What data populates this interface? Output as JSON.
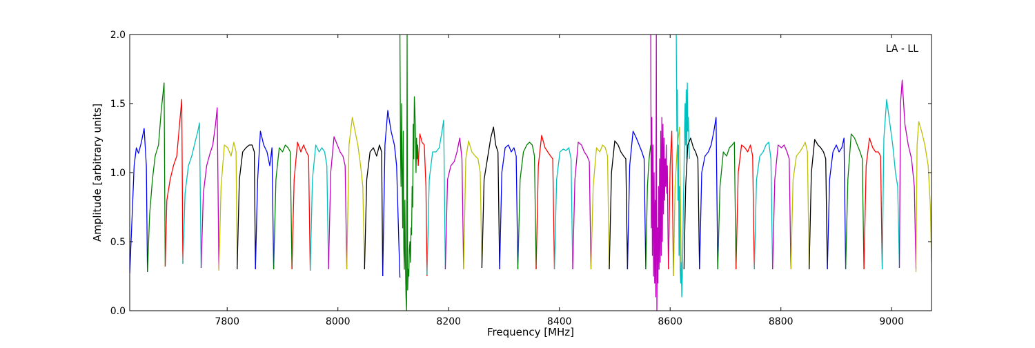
{
  "chart_data": {
    "type": "line",
    "annotation": "LA - LL",
    "xlabel": "Frequency [MHz]",
    "ylabel": "Amplitude [arbitrary units]",
    "xlim": [
      7624,
      9072
    ],
    "ylim": [
      0.0,
      2.0
    ],
    "x_ticks": [
      7800,
      8000,
      8200,
      8400,
      8600,
      8800,
      9000
    ],
    "y_ticks": [
      0.0,
      0.5,
      1.0,
      1.5,
      2.0
    ],
    "x_tick_labels": [
      "7800",
      "8000",
      "8200",
      "8400",
      "8600",
      "8800",
      "9000"
    ],
    "y_tick_labels": [
      "0.0",
      "0.5",
      "1.0",
      "1.5",
      "2.0"
    ],
    "grid": false,
    "legend": "none",
    "color_cycle": [
      "#0000ff",
      "#008000",
      "#ff0000",
      "#00bfbf",
      "#bf00bf",
      "#bfbf00",
      "#000000"
    ],
    "series": [
      {
        "color": "#0000ff",
        "x": [
          7624,
          7628,
          7632,
          7636,
          7640,
          7645,
          7650,
          7654,
          7656
        ],
        "y": [
          0.27,
          0.65,
          1.05,
          1.18,
          1.14,
          1.22,
          1.32,
          1.05,
          0.28
        ]
      },
      {
        "color": "#008000",
        "x": [
          7656,
          7660,
          7665,
          7670,
          7676,
          7681,
          7686,
          7688
        ],
        "y": [
          0.28,
          0.7,
          0.95,
          1.12,
          1.2,
          1.45,
          1.65,
          0.32
        ]
      },
      {
        "color": "#ff0000",
        "x": [
          7688,
          7691,
          7697,
          7703,
          7709,
          7714,
          7718,
          7720
        ],
        "y": [
          0.32,
          0.8,
          0.95,
          1.05,
          1.12,
          1.35,
          1.53,
          0.34
        ]
      },
      {
        "color": "#00bfbf",
        "x": [
          7720,
          7724,
          7730,
          7736,
          7742,
          7747,
          7750,
          7753
        ],
        "y": [
          0.34,
          0.85,
          1.05,
          1.12,
          1.22,
          1.3,
          1.36,
          0.31
        ]
      },
      {
        "color": "#bf00bf",
        "x": [
          7753,
          7757,
          7763,
          7769,
          7774,
          7779,
          7782,
          7785
        ],
        "y": [
          0.31,
          0.85,
          1.05,
          1.14,
          1.2,
          1.35,
          1.47,
          0.3
        ]
      },
      {
        "color": "#bfbf00",
        "x": [
          7785,
          7789,
          7795,
          7801,
          7807,
          7812,
          7816,
          7818
        ],
        "y": [
          0.29,
          0.9,
          1.2,
          1.18,
          1.12,
          1.22,
          1.15,
          0.33
        ]
      },
      {
        "color": "#000000",
        "x": [
          7818,
          7822,
          7828,
          7834,
          7840,
          7845,
          7849,
          7851
        ],
        "y": [
          0.3,
          0.95,
          1.15,
          1.18,
          1.2,
          1.2,
          1.15,
          0.3
        ]
      },
      {
        "color": "#0000ff",
        "x": [
          7851,
          7855,
          7860,
          7866,
          7872,
          7877,
          7881,
          7884
        ],
        "y": [
          0.3,
          0.95,
          1.3,
          1.2,
          1.15,
          1.05,
          1.18,
          0.3
        ]
      },
      {
        "color": "#008000",
        "x": [
          7884,
          7888,
          7894,
          7900,
          7905,
          7910,
          7914,
          7917
        ],
        "y": [
          0.3,
          0.95,
          1.18,
          1.15,
          1.2,
          1.18,
          1.15,
          0.3
        ]
      },
      {
        "color": "#ff0000",
        "x": [
          7917,
          7921,
          7927,
          7933,
          7938,
          7943,
          7947,
          7950
        ],
        "y": [
          0.3,
          0.95,
          1.22,
          1.15,
          1.2,
          1.15,
          1.12,
          0.29
        ]
      },
      {
        "color": "#00bfbf",
        "x": [
          7950,
          7954,
          7960,
          7966,
          7971,
          7976,
          7980,
          7983
        ],
        "y": [
          0.29,
          0.95,
          1.2,
          1.15,
          1.18,
          1.15,
          1.05,
          0.3
        ]
      },
      {
        "color": "#bf00bf",
        "x": [
          7983,
          7987,
          7993,
          7999,
          8004,
          8009,
          8013,
          8016
        ],
        "y": [
          0.3,
          1.0,
          1.26,
          1.2,
          1.15,
          1.12,
          1.05,
          0.3
        ]
      },
      {
        "color": "#bfbf00",
        "x": [
          8016,
          8020,
          8026,
          8031,
          8036,
          8041,
          8045,
          8048
        ],
        "y": [
          0.3,
          1.2,
          1.4,
          1.3,
          1.2,
          1.05,
          0.9,
          0.3
        ]
      },
      {
        "color": "#000000",
        "x": [
          8048,
          8052,
          8058,
          8064,
          8070,
          8075,
          8079,
          8081
        ],
        "y": [
          0.3,
          0.95,
          1.15,
          1.18,
          1.12,
          1.2,
          1.15,
          0.25
        ]
      },
      {
        "color": "#0000ff",
        "x": [
          8081,
          8085,
          8090,
          8096,
          8102,
          8106,
          8110,
          8112
        ],
        "y": [
          0.25,
          1.2,
          1.45,
          1.3,
          1.2,
          1.05,
          0.5,
          0.24
        ]
      },
      {
        "color": "#008000",
        "x": [
          8112,
          8113,
          8114,
          8115,
          8116,
          8117,
          8118,
          8119,
          8120,
          8121,
          8122,
          8123,
          8124,
          8125,
          8126,
          8127,
          8128,
          8129,
          8130,
          8131,
          8132,
          8133,
          8134,
          8135,
          8136,
          8137,
          8138,
          8139,
          8140,
          8141,
          8142,
          8143,
          8144,
          8145
        ],
        "y": [
          2.0,
          1.2,
          0.9,
          1.5,
          1.0,
          0.6,
          1.3,
          0.45,
          0.3,
          0.8,
          0.35,
          0.1,
          0.0,
          2.0,
          0.15,
          0.3,
          0.25,
          0.45,
          0.5,
          0.35,
          0.6,
          0.55,
          0.9,
          0.75,
          1.35,
          1.1,
          1.55,
          1.45,
          1.3,
          1.0,
          1.25,
          1.1,
          1.2,
          1.05
        ]
      },
      {
        "color": "#ff0000",
        "x": [
          8145,
          8148,
          8152,
          8156,
          8159,
          8161
        ],
        "y": [
          1.05,
          1.28,
          1.22,
          1.2,
          0.9,
          0.25
        ]
      },
      {
        "color": "#00bfbf",
        "x": [
          8161,
          8165,
          8171,
          8177,
          8183,
          8188,
          8191,
          8194
        ],
        "y": [
          0.26,
          0.95,
          1.15,
          1.15,
          1.18,
          1.3,
          1.38,
          0.3
        ]
      },
      {
        "color": "#bf00bf",
        "x": [
          8194,
          8198,
          8204,
          8210,
          8215,
          8220,
          8224,
          8227
        ],
        "y": [
          0.3,
          0.95,
          1.05,
          1.08,
          1.15,
          1.25,
          1.1,
          0.3
        ]
      },
      {
        "color": "#bfbf00",
        "x": [
          8227,
          8231,
          8236,
          8242,
          8248,
          8253,
          8257,
          8260
        ],
        "y": [
          0.3,
          1.1,
          1.23,
          1.15,
          1.12,
          1.1,
          1.0,
          0.31
        ]
      },
      {
        "color": "#000000",
        "x": [
          8260,
          8264,
          8270,
          8276,
          8281,
          8285,
          8289,
          8292
        ],
        "y": [
          0.31,
          0.95,
          1.1,
          1.25,
          1.33,
          1.2,
          1.15,
          0.3
        ]
      },
      {
        "color": "#0000ff",
        "x": [
          8292,
          8296,
          8302,
          8308,
          8313,
          8318,
          8322,
          8325
        ],
        "y": [
          0.3,
          1.0,
          1.18,
          1.2,
          1.15,
          1.18,
          1.12,
          0.3
        ]
      },
      {
        "color": "#008000",
        "x": [
          8325,
          8329,
          8335,
          8341,
          8346,
          8351,
          8355,
          8358
        ],
        "y": [
          0.3,
          0.95,
          1.15,
          1.2,
          1.22,
          1.2,
          1.12,
          0.3
        ]
      },
      {
        "color": "#ff0000",
        "x": [
          8358,
          8362,
          8368,
          8374,
          8379,
          8384,
          8388,
          8391
        ],
        "y": [
          0.3,
          1.05,
          1.27,
          1.18,
          1.15,
          1.12,
          1.1,
          0.3
        ]
      },
      {
        "color": "#00bfbf",
        "x": [
          8391,
          8395,
          8401,
          8407,
          8412,
          8417,
          8421,
          8424
        ],
        "y": [
          0.3,
          0.95,
          1.15,
          1.17,
          1.16,
          1.18,
          1.1,
          0.3
        ]
      },
      {
        "color": "#bf00bf",
        "x": [
          8424,
          8428,
          8434,
          8440,
          8445,
          8450,
          8454,
          8457
        ],
        "y": [
          0.3,
          0.95,
          1.22,
          1.2,
          1.15,
          1.12,
          1.08,
          0.3
        ]
      },
      {
        "color": "#bfbf00",
        "x": [
          8457,
          8461,
          8467,
          8473,
          8478,
          8483,
          8487,
          8490
        ],
        "y": [
          0.3,
          0.9,
          1.18,
          1.15,
          1.2,
          1.18,
          1.12,
          0.3
        ]
      },
      {
        "color": "#000000",
        "x": [
          8490,
          8494,
          8500,
          8506,
          8511,
          8516,
          8520,
          8523
        ],
        "y": [
          0.3,
          1.0,
          1.23,
          1.2,
          1.15,
          1.12,
          1.1,
          0.3
        ]
      },
      {
        "color": "#0000ff",
        "x": [
          8523,
          8527,
          8533,
          8539,
          8544,
          8549,
          8553,
          8556
        ],
        "y": [
          0.3,
          1.05,
          1.3,
          1.25,
          1.2,
          1.15,
          1.1,
          0.3
        ]
      },
      {
        "color": "#008000",
        "x": [
          8556,
          8559,
          8562,
          8565
        ],
        "y": [
          0.3,
          0.9,
          1.1,
          1.2
        ]
      },
      {
        "color": "#bf00bf",
        "x": [
          8565,
          8566,
          8567,
          8568,
          8569,
          8570,
          8571,
          8572,
          8573,
          8574,
          8575,
          8576,
          8577,
          8578,
          8579,
          8580,
          8581,
          8582,
          8583,
          8584,
          8585,
          8586,
          8587,
          8588,
          8589,
          8590,
          8591,
          8592,
          8593,
          8594,
          8595,
          8596,
          8597
        ],
        "y": [
          2.0,
          0.6,
          1.4,
          0.4,
          1.2,
          0.25,
          1.0,
          0.2,
          0.8,
          0.1,
          2.0,
          0.0,
          0.6,
          0.2,
          0.9,
          0.3,
          1.1,
          0.35,
          1.3,
          0.4,
          1.4,
          0.5,
          1.35,
          0.7,
          1.25,
          0.8,
          1.1,
          0.9,
          1.2,
          0.85,
          1.05,
          0.6,
          0.3
        ]
      },
      {
        "color": "#ff0000",
        "x": [
          8597,
          8600,
          8603,
          8606
        ],
        "y": [
          0.3,
          1.05,
          1.3,
          0.25
        ]
      },
      {
        "color": "#bfbf00",
        "x": [
          8606,
          8609,
          8613,
          8617,
          8620
        ],
        "y": [
          0.25,
          0.9,
          1.2,
          1.33,
          0.3
        ]
      },
      {
        "color": "#00bfbf",
        "x": [
          8611,
          8612,
          8613,
          8614,
          8615,
          8616,
          8617,
          8618,
          8619,
          8620,
          8621,
          8622,
          8623,
          8624,
          8625,
          8626,
          8627,
          8628,
          8629,
          8630,
          8631,
          8632,
          8633,
          8634,
          8635
        ],
        "y": [
          2.0,
          1.3,
          1.6,
          0.8,
          1.2,
          0.4,
          0.9,
          0.3,
          0.2,
          0.35,
          0.1,
          0.25,
          0.5,
          0.8,
          1.0,
          1.3,
          1.5,
          1.2,
          1.6,
          1.1,
          1.65,
          1.3,
          1.4,
          1.2,
          1.1
        ]
      },
      {
        "color": "#000000",
        "x": [
          8625,
          8628,
          8632,
          8637,
          8642,
          8646,
          8650,
          8653
        ],
        "y": [
          0.3,
          0.9,
          1.2,
          1.25,
          1.18,
          1.15,
          1.1,
          0.3
        ]
      },
      {
        "color": "#0000ff",
        "x": [
          8653,
          8657,
          8663,
          8669,
          8674,
          8679,
          8683,
          8686
        ],
        "y": [
          0.3,
          1.0,
          1.12,
          1.15,
          1.2,
          1.3,
          1.4,
          0.3
        ]
      },
      {
        "color": "#008000",
        "x": [
          8686,
          8690,
          8696,
          8702,
          8707,
          8712,
          8716,
          8719
        ],
        "y": [
          0.3,
          0.9,
          1.15,
          1.12,
          1.18,
          1.2,
          1.22,
          0.3
        ]
      },
      {
        "color": "#ff0000",
        "x": [
          8719,
          8723,
          8729,
          8735,
          8740,
          8745,
          8749,
          8752
        ],
        "y": [
          0.3,
          1.0,
          1.2,
          1.18,
          1.15,
          1.2,
          1.12,
          0.3
        ]
      },
      {
        "color": "#00bfbf",
        "x": [
          8752,
          8756,
          8762,
          8768,
          8773,
          8778,
          8782,
          8785
        ],
        "y": [
          0.3,
          0.95,
          1.12,
          1.15,
          1.2,
          1.22,
          1.1,
          0.3
        ]
      },
      {
        "color": "#bf00bf",
        "x": [
          8785,
          8789,
          8795,
          8801,
          8806,
          8811,
          8815,
          8818
        ],
        "y": [
          0.3,
          0.95,
          1.2,
          1.18,
          1.2,
          1.15,
          1.1,
          0.3
        ]
      },
      {
        "color": "#bfbf00",
        "x": [
          8818,
          8822,
          8828,
          8834,
          8839,
          8844,
          8848,
          8851
        ],
        "y": [
          0.3,
          0.95,
          1.12,
          1.15,
          1.18,
          1.22,
          1.15,
          0.3
        ]
      },
      {
        "color": "#000000",
        "x": [
          8851,
          8855,
          8861,
          8867,
          8872,
          8877,
          8881,
          8884
        ],
        "y": [
          0.3,
          1.0,
          1.24,
          1.2,
          1.18,
          1.15,
          1.1,
          0.3
        ]
      },
      {
        "color": "#0000ff",
        "x": [
          8884,
          8888,
          8894,
          8900,
          8905,
          8910,
          8914,
          8917
        ],
        "y": [
          0.3,
          0.95,
          1.15,
          1.2,
          1.15,
          1.18,
          1.25,
          0.3
        ]
      },
      {
        "color": "#008000",
        "x": [
          8917,
          8921,
          8927,
          8933,
          8938,
          8943,
          8947,
          8950
        ],
        "y": [
          0.3,
          0.95,
          1.28,
          1.25,
          1.2,
          1.15,
          1.1,
          0.3
        ]
      },
      {
        "color": "#ff0000",
        "x": [
          8950,
          8954,
          8960,
          8966,
          8971,
          8976,
          8980,
          8983
        ],
        "y": [
          0.3,
          1.05,
          1.25,
          1.18,
          1.15,
          1.15,
          1.12,
          0.3
        ]
      },
      {
        "color": "#00bfbf",
        "x": [
          8983,
          8986,
          8991,
          8997,
          9002,
          9007,
          9011,
          9014
        ],
        "y": [
          0.3,
          1.25,
          1.53,
          1.35,
          1.2,
          1.0,
          0.9,
          0.31
        ]
      },
      {
        "color": "#bf00bf",
        "x": [
          9014,
          9016,
          9019,
          9024,
          9030,
          9036,
          9041,
          9044
        ],
        "y": [
          0.31,
          1.5,
          1.67,
          1.35,
          1.2,
          1.1,
          0.9,
          0.3
        ]
      },
      {
        "color": "#bfbf00",
        "x": [
          9044,
          9046,
          9049,
          9054,
          9060,
          9066,
          9070,
          9072
        ],
        "y": [
          0.28,
          1.2,
          1.37,
          1.3,
          1.2,
          1.05,
          0.75,
          0.35
        ]
      }
    ]
  }
}
